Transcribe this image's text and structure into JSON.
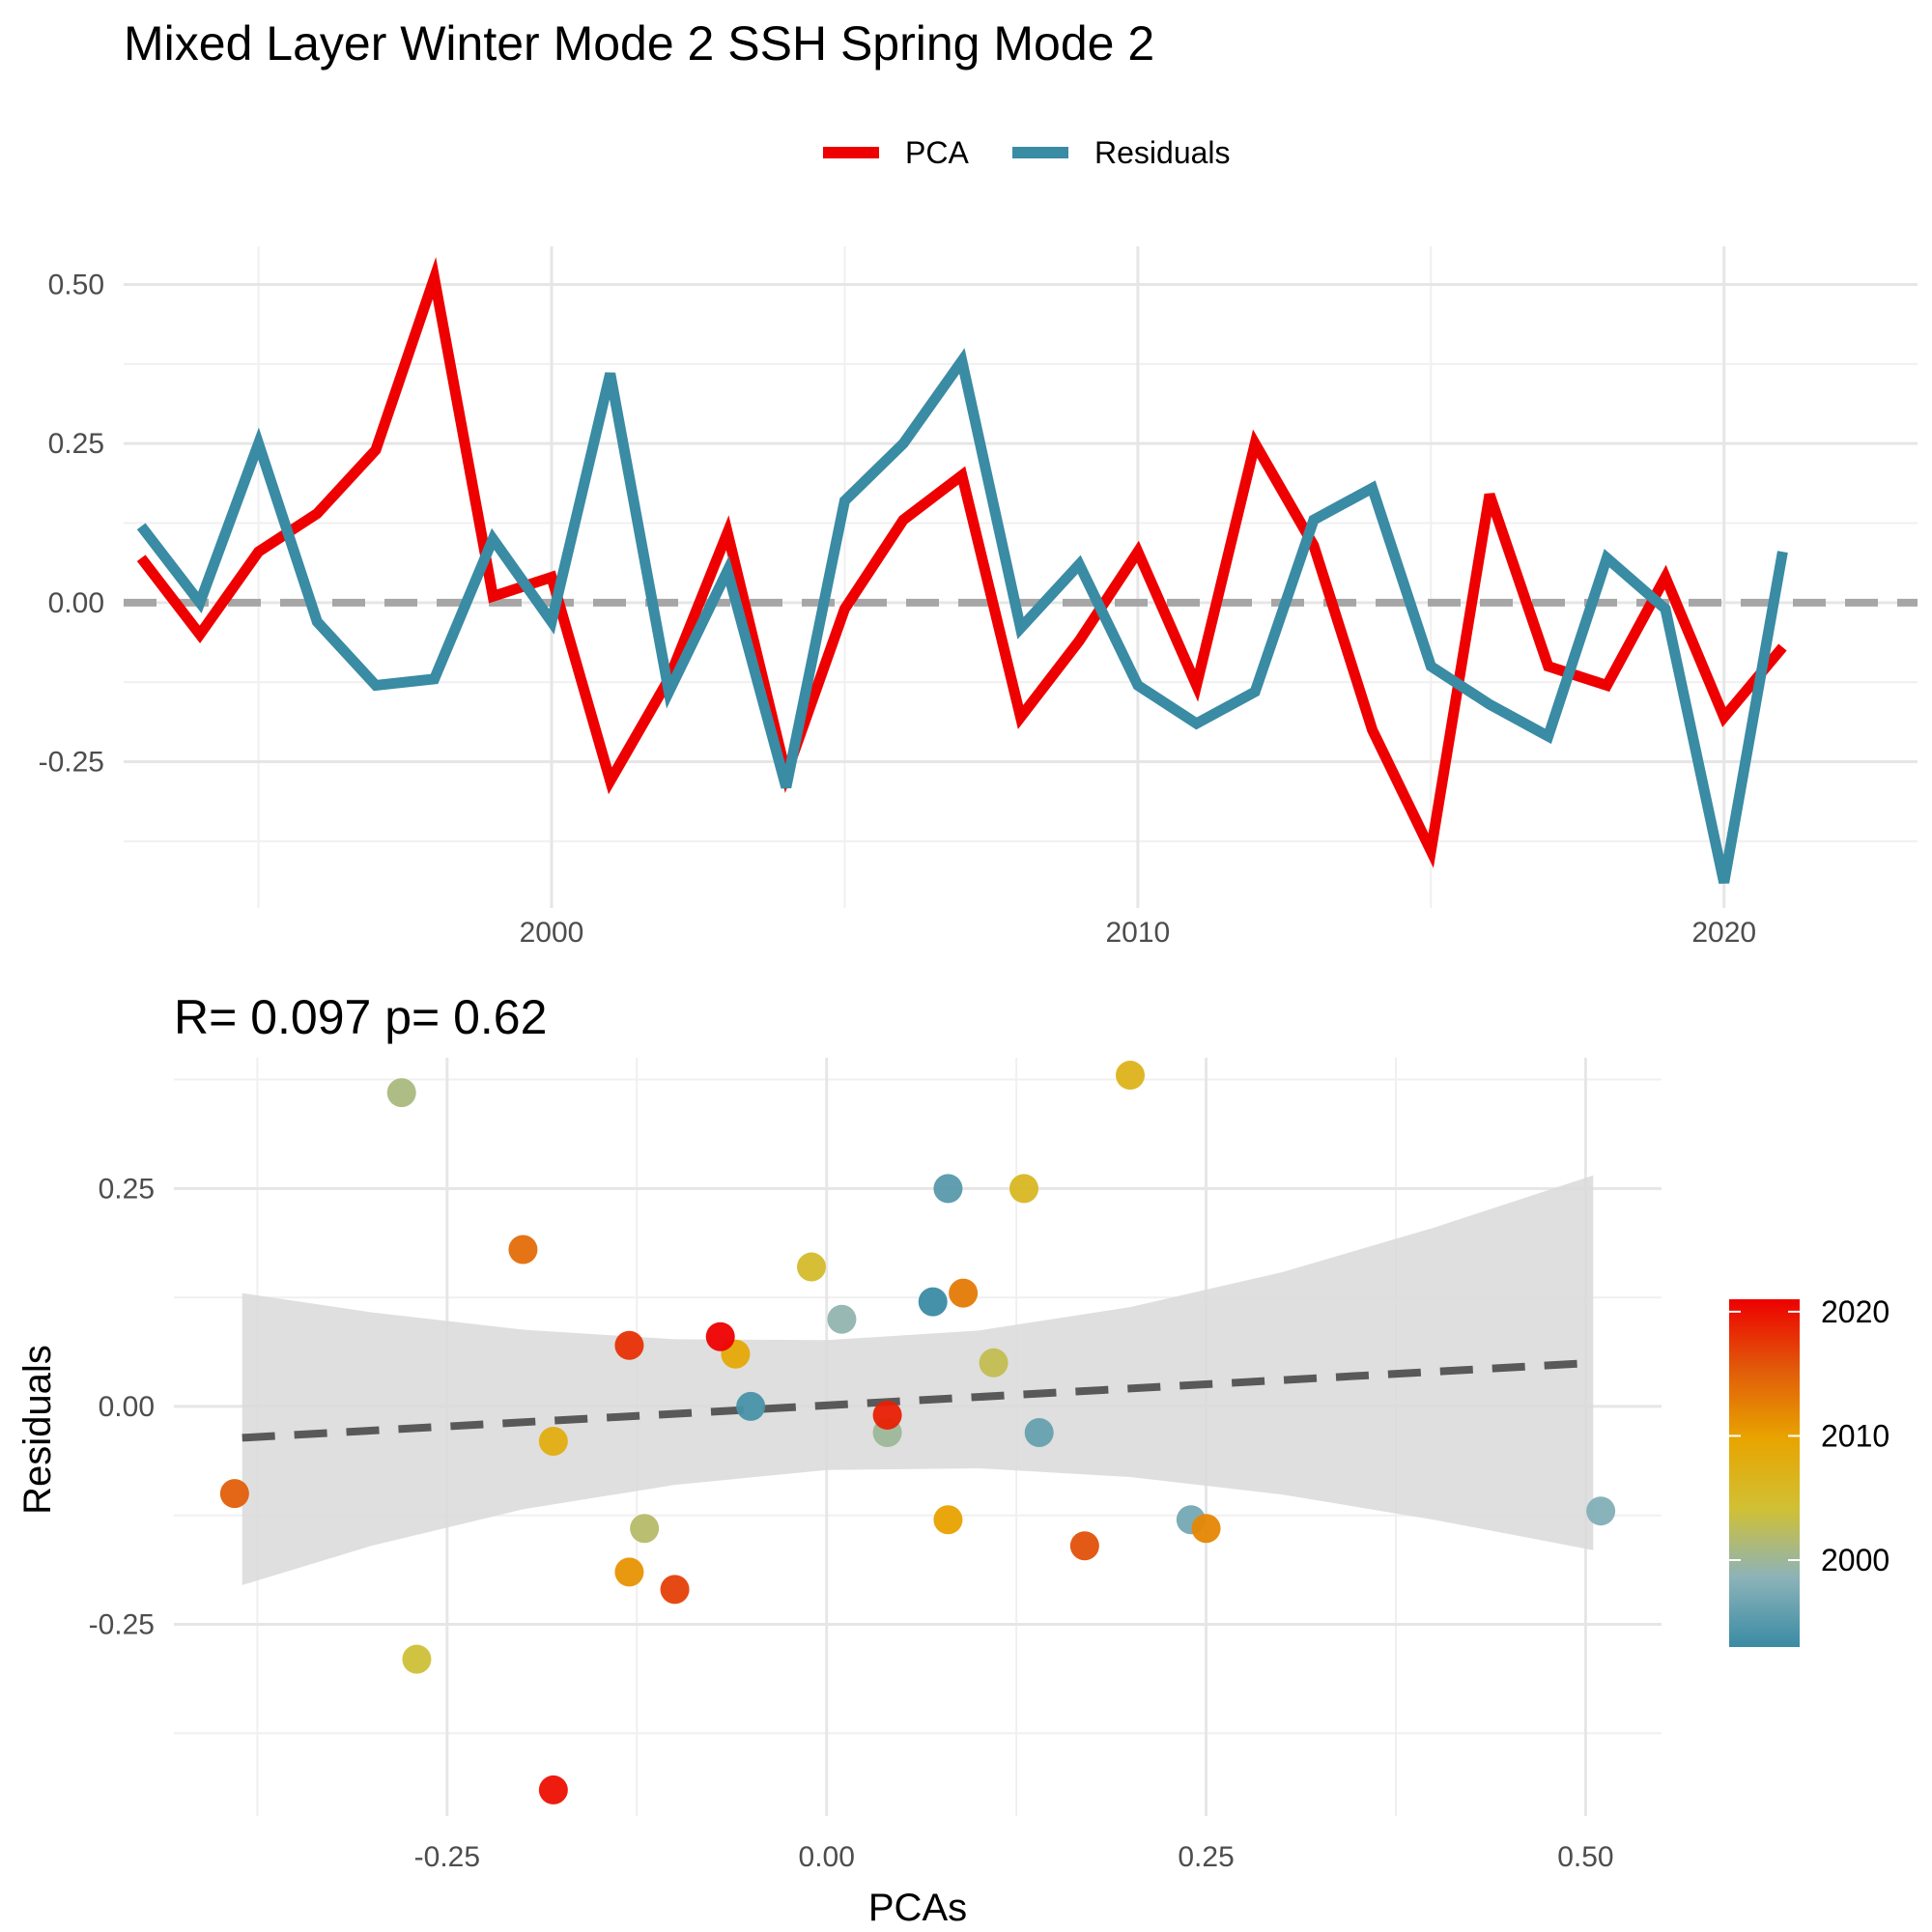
{
  "chart_data": [
    {
      "type": "line",
      "title": "Mixed Layer Winter Mode 2 SSH Spring Mode 2",
      "xlabel": "",
      "ylabel": "",
      "xlim": [
        1992.7,
        2023.3
      ],
      "ylim": [
        -0.48,
        0.56
      ],
      "xticks": [
        2000,
        2010,
        2020
      ],
      "yticks": [
        0.5,
        0.25,
        0.0,
        -0.25
      ],
      "ytick_labels": [
        "0.50",
        "0.25",
        "0.00",
        "-0.25"
      ],
      "grid": true,
      "legend_position": "top",
      "reference_line": {
        "y": 0,
        "style": "dashed",
        "color": "#a6a6a6"
      },
      "x": [
        1993,
        1994,
        1995,
        1996,
        1997,
        1998,
        1999,
        2000,
        2001,
        2002,
        2003,
        2004,
        2005,
        2006,
        2007,
        2008,
        2009,
        2010,
        2011,
        2012,
        2013,
        2014,
        2015,
        2016,
        2017,
        2018,
        2019,
        2020,
        2021
      ],
      "series": [
        {
          "name": "PCA",
          "color": "#ee0000",
          "values": [
            0.07,
            -0.05,
            0.08,
            0.14,
            0.24,
            0.51,
            0.01,
            0.04,
            -0.28,
            -0.12,
            0.11,
            -0.27,
            -0.01,
            0.13,
            0.2,
            -0.18,
            -0.06,
            0.08,
            -0.13,
            0.25,
            0.09,
            -0.2,
            -0.39,
            0.17,
            -0.1,
            -0.13,
            0.04,
            -0.18,
            -0.07
          ]
        },
        {
          "name": "Residuals",
          "color": "#3a8ba4",
          "values": [
            0.12,
            0.0,
            0.25,
            -0.03,
            -0.13,
            -0.12,
            0.1,
            -0.03,
            0.36,
            -0.14,
            0.05,
            -0.29,
            0.16,
            0.25,
            0.38,
            -0.04,
            0.06,
            -0.13,
            -0.19,
            -0.14,
            0.13,
            0.18,
            -0.1,
            -0.16,
            -0.21,
            0.07,
            -0.01,
            -0.44,
            0.08
          ]
        }
      ]
    },
    {
      "type": "scatter",
      "title": "R= 0.097  p= 0.62",
      "xlabel": "PCAs",
      "ylabel": "Residuals",
      "xlim": [
        -0.43,
        0.55
      ],
      "ylim": [
        -0.47,
        0.4
      ],
      "xticks": [
        -0.25,
        0.0,
        0.25,
        0.5
      ],
      "xtick_labels": [
        "-0.25",
        "0.00",
        "0.25",
        "0.50"
      ],
      "yticks": [
        0.25,
        0.0,
        -0.25
      ],
      "ytick_labels": [
        "0.25",
        "0.00",
        "-0.25"
      ],
      "grid": true,
      "trend_line": {
        "x": [
          -0.385,
          0.505
        ],
        "y": [
          -0.036,
          0.05
        ],
        "style": "dashed",
        "color": "#595959"
      },
      "confidence_band": {
        "x": [
          -0.385,
          -0.3,
          -0.2,
          -0.1,
          0.0,
          0.1,
          0.2,
          0.3,
          0.4,
          0.505
        ],
        "upper": [
          0.13,
          0.108,
          0.088,
          0.077,
          0.076,
          0.087,
          0.114,
          0.154,
          0.205,
          0.265
        ],
        "lower": [
          -0.205,
          -0.16,
          -0.118,
          -0.09,
          -0.073,
          -0.071,
          -0.081,
          -0.101,
          -0.13,
          -0.165
        ]
      },
      "colorbar": {
        "title": "",
        "ticks": [
          2000,
          2010,
          2020
        ],
        "range": [
          1993,
          2021
        ],
        "position": "right",
        "colors": [
          "#3a8ba4",
          "#8cb3b9",
          "#d1c033",
          "#e8a400",
          "#e15a0a",
          "#ee0000"
        ]
      },
      "points": [
        {
          "x": 0.07,
          "y": 0.12,
          "year": 1993
        },
        {
          "x": -0.05,
          "y": 0.0,
          "year": 1994
        },
        {
          "x": 0.08,
          "y": 0.25,
          "year": 1995
        },
        {
          "x": 0.14,
          "y": -0.03,
          "year": 1996
        },
        {
          "x": 0.24,
          "y": -0.13,
          "year": 1997
        },
        {
          "x": 0.51,
          "y": -0.12,
          "year": 1998
        },
        {
          "x": 0.01,
          "y": 0.1,
          "year": 1999
        },
        {
          "x": 0.04,
          "y": -0.03,
          "year": 2000
        },
        {
          "x": -0.28,
          "y": 0.36,
          "year": 2001
        },
        {
          "x": -0.12,
          "y": -0.14,
          "year": 2002
        },
        {
          "x": 0.11,
          "y": 0.05,
          "year": 2003
        },
        {
          "x": -0.27,
          "y": -0.29,
          "year": 2004
        },
        {
          "x": -0.01,
          "y": 0.16,
          "year": 2005
        },
        {
          "x": 0.13,
          "y": 0.25,
          "year": 2006
        },
        {
          "x": 0.2,
          "y": 0.38,
          "year": 2007
        },
        {
          "x": -0.18,
          "y": -0.04,
          "year": 2008
        },
        {
          "x": -0.06,
          "y": 0.06,
          "year": 2009
        },
        {
          "x": 0.08,
          "y": -0.13,
          "year": 2010
        },
        {
          "x": -0.13,
          "y": -0.19,
          "year": 2011
        },
        {
          "x": 0.25,
          "y": -0.14,
          "year": 2012
        },
        {
          "x": 0.09,
          "y": 0.13,
          "year": 2013
        },
        {
          "x": -0.2,
          "y": 0.18,
          "year": 2014
        },
        {
          "x": -0.39,
          "y": -0.1,
          "year": 2015
        },
        {
          "x": 0.17,
          "y": -0.16,
          "year": 2016
        },
        {
          "x": -0.1,
          "y": -0.21,
          "year": 2017
        },
        {
          "x": -0.13,
          "y": 0.07,
          "year": 2018
        },
        {
          "x": 0.04,
          "y": -0.01,
          "year": 2019
        },
        {
          "x": -0.18,
          "y": -0.44,
          "year": 2020
        },
        {
          "x": -0.07,
          "y": 0.08,
          "year": 2021
        }
      ]
    }
  ]
}
